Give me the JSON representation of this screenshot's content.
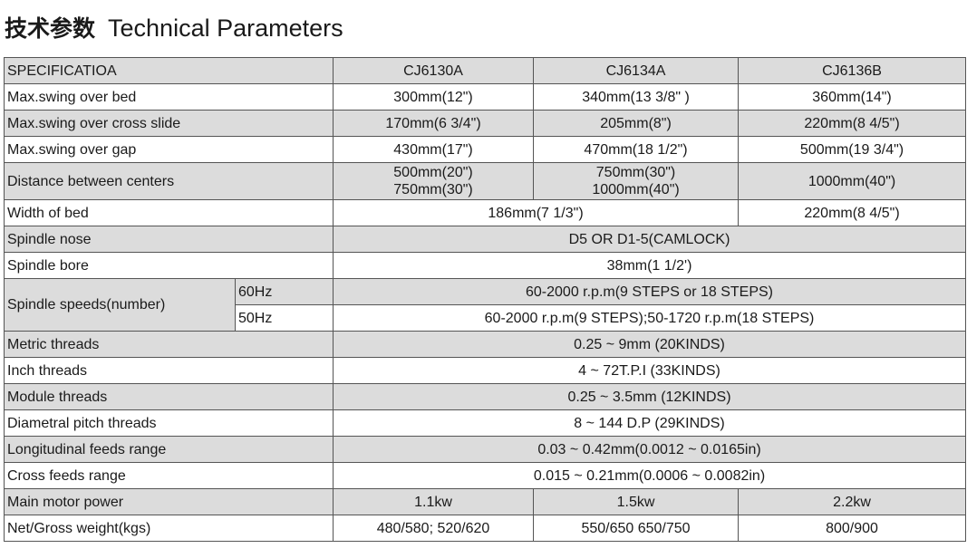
{
  "title": {
    "cn": "技术参数",
    "en": "Technical Parameters"
  },
  "header": [
    "SPECIFICATIOA",
    "CJ6130A",
    "CJ6134A",
    "CJ6136B"
  ],
  "rows": {
    "swing_bed": [
      "Max.swing over bed",
      "300mm(12\")",
      "340mm(13 3/8\" )",
      "360mm(14\")"
    ],
    "swing_cross": [
      "Max.swing over cross slide",
      "170mm(6 3/4\")",
      "205mm(8\")",
      "220mm(8 4/5\")"
    ],
    "swing_gap": [
      "Max.swing over gap",
      "430mm(17\")",
      "470mm(18 1/2\")",
      "500mm(19 3/4\")"
    ],
    "centers": [
      "Distance between centers",
      "500mm(20\")",
      "750mm(30\")",
      "750mm(30\")",
      "1000mm(40\")",
      "1000mm(40\")"
    ],
    "bed_width": [
      "Width of bed",
      "186mm(7 1/3\")",
      "220mm(8 4/5\")"
    ],
    "nose": [
      "Spindle nose",
      "D5 OR D1-5(CAMLOCK)"
    ],
    "bore": [
      "Spindle bore",
      "38mm(1 1/2')"
    ],
    "speeds": {
      "label": "Spindle speeds(number)",
      "hz60": "60Hz",
      "val60": "60-2000 r.p.m(9 STEPS or 18 STEPS)",
      "hz50": "50Hz",
      "val50": "60-2000 r.p.m(9 STEPS);50-1720 r.p.m(18 STEPS)"
    },
    "metric": [
      "Metric threads",
      "0.25 ~ 9mm  (20KINDS)"
    ],
    "inch": [
      "Inch threads",
      "4 ~ 72T.P.I  (33KINDS)"
    ],
    "module": [
      "Module threads",
      "0.25 ~ 3.5mm  (12KINDS)"
    ],
    "diametral": [
      "Diametral pitch threads",
      "8 ~ 144  D.P   (29KINDS)"
    ],
    "long_feed": [
      "Longitudinal feeds range",
      "0.03 ~ 0.42mm(0.0012 ~ 0.0165in)"
    ],
    "cross_feed": [
      "Cross feeds range",
      "0.015 ~ 0.21mm(0.0006 ~ 0.0082in)"
    ],
    "motor": [
      "Main motor power",
      "1.1kw",
      "1.5kw",
      "2.2kw"
    ],
    "weight": [
      "Net/Gross weight(kgs)",
      "480/580; 520/620",
      "550/650  650/750",
      "800/900"
    ]
  }
}
